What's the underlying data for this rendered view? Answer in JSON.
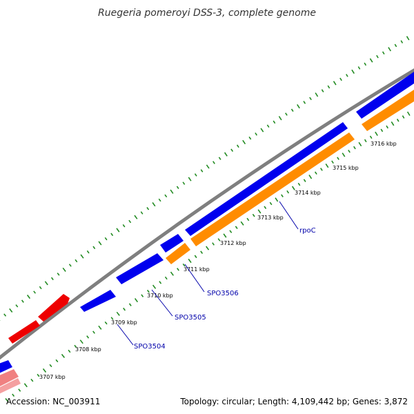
{
  "title": "Ruegeria pomeroyi DSS-3, complete genome",
  "footer": {
    "accession": "Accession: NC_003911",
    "summary": "Topology: circular; Length: 4,109,442 bp; Genes: 3,872"
  },
  "colors": {
    "forward_cds": "#0000ee",
    "reverse_cds": "#ff8c00",
    "rna_red": "#ee0000",
    "rna_pink": "#f08080",
    "backbone": "#808080",
    "gc_dots": "#228b22",
    "label_line": "#0000aa"
  },
  "ticks": [
    {
      "pos": 3707,
      "label": "3707 kbp"
    },
    {
      "pos": 3708,
      "label": "3708 kbp"
    },
    {
      "pos": 3709,
      "label": "3709 kbp"
    },
    {
      "pos": 3710,
      "label": "3710 kbp"
    },
    {
      "pos": 3711,
      "label": "3711 kbp"
    },
    {
      "pos": 3712,
      "label": "3712 kbp"
    },
    {
      "pos": 3713,
      "label": "3713 kbp"
    },
    {
      "pos": 3714,
      "label": "3714 kbp"
    },
    {
      "pos": 3715,
      "label": "3715 kbp"
    },
    {
      "pos": 3716,
      "label": "3716 kbp"
    }
  ],
  "gene_labels": [
    {
      "name": "SPO3504"
    },
    {
      "name": "SPO3505"
    },
    {
      "name": "SPO3506"
    },
    {
      "name": "rpoC"
    }
  ]
}
